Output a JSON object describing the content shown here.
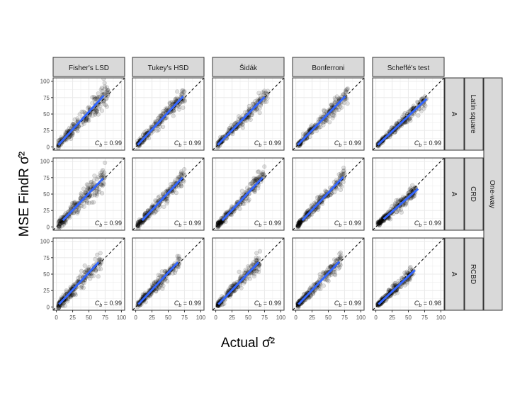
{
  "chart_data": {
    "type": "scatter",
    "xlabel": "Actual σ̂²",
    "ylabel": "MSE FindR σ̂²",
    "xlim": [
      -5,
      105
    ],
    "ylim": [
      -5,
      105
    ],
    "ticks": [
      "0",
      "25",
      "50",
      "75",
      "100"
    ],
    "tick_values": [
      0,
      25,
      50,
      75,
      100
    ],
    "grid": true,
    "reference_line": "y = x (dashed)",
    "columns": [
      "Fisher's LSD",
      "Tukey's HSD",
      "Šidák",
      "Bonferroni",
      "Scheffé's test"
    ],
    "rows": [
      {
        "factor": "A",
        "design": "Latin square"
      },
      {
        "factor": "A",
        "design": "CRD"
      },
      {
        "factor": "A",
        "design": "RCBD"
      }
    ],
    "outer_strip": "One-way",
    "cb_label": "C",
    "cb_sub": "b",
    "panels": [
      {
        "row": 0,
        "col": 0,
        "cb": "= 0.99",
        "fit": [
          3,
          3,
          73,
          78
        ],
        "xmax": 80,
        "spread": 7
      },
      {
        "row": 0,
        "col": 1,
        "cb": "= 0.99",
        "fit": [
          3,
          3,
          73,
          77
        ],
        "xmax": 78,
        "spread": 5
      },
      {
        "row": 0,
        "col": 2,
        "cb": "= 0.99",
        "fit": [
          3,
          3,
          75,
          76
        ],
        "xmax": 80,
        "spread": 5
      },
      {
        "row": 0,
        "col": 3,
        "cb": "= 0.99",
        "fit": [
          3,
          3,
          76,
          77
        ],
        "xmax": 80,
        "spread": 5
      },
      {
        "row": 0,
        "col": 4,
        "cb": "= 0.99",
        "fit": [
          3,
          3,
          78,
          73
        ],
        "xmax": 78,
        "spread": 4
      },
      {
        "row": 1,
        "col": 0,
        "cb": "= 0.99",
        "fit": [
          10,
          10,
          72,
          74
        ],
        "xmax": 75,
        "spread": 7
      },
      {
        "row": 1,
        "col": 1,
        "cb": "= 0.99",
        "fit": [
          10,
          10,
          72,
          75
        ],
        "xmax": 75,
        "spread": 5
      },
      {
        "row": 1,
        "col": 2,
        "cb": "= 0.99",
        "fit": [
          10,
          10,
          72,
          75
        ],
        "xmax": 75,
        "spread": 5
      },
      {
        "row": 1,
        "col": 3,
        "cb": "= 0.99",
        "fit": [
          10,
          10,
          73,
          76
        ],
        "xmax": 75,
        "spread": 5
      },
      {
        "row": 1,
        "col": 4,
        "cb": "= 0.99",
        "fit": [
          12,
          12,
          65,
          58
        ],
        "xmax": 62,
        "spread": 4
      },
      {
        "row": 2,
        "col": 0,
        "cb": "= 0.99",
        "fit": [
          4,
          4,
          65,
          68
        ],
        "xmax": 70,
        "spread": 6
      },
      {
        "row": 2,
        "col": 1,
        "cb": "= 0.99",
        "fit": [
          4,
          4,
          65,
          68
        ],
        "xmax": 68,
        "spread": 5
      },
      {
        "row": 2,
        "col": 2,
        "cb": "= 0.99",
        "fit": [
          4,
          4,
          66,
          68
        ],
        "xmax": 68,
        "spread": 5
      },
      {
        "row": 2,
        "col": 3,
        "cb": "= 0.99",
        "fit": [
          4,
          4,
          67,
          69
        ],
        "xmax": 70,
        "spread": 5
      },
      {
        "row": 2,
        "col": 4,
        "cb": "= 0.98",
        "fit": [
          4,
          4,
          60,
          56
        ],
        "xmax": 58,
        "spread": 4
      }
    ],
    "colors": {
      "fit": "#3366ff",
      "points": "#000000",
      "strip": "#d9d9d9",
      "border": "#333333",
      "grid": "#ebebeb"
    }
  }
}
